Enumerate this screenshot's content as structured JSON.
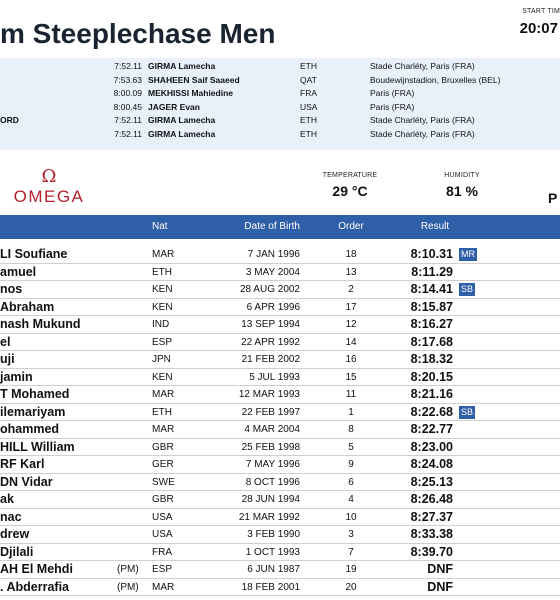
{
  "header": {
    "title": "m Steeplechase Men",
    "start_time_label": "START TIM",
    "start_time": "20:07"
  },
  "records": [
    {
      "category": "",
      "time": "7:52.11",
      "name": "GIRMA Lamecha",
      "nat": "ETH",
      "venue": "Stade Charléty, Paris (FRA)"
    },
    {
      "category": "",
      "time": "7:53.63",
      "name": "SHAHEEN Saif Saaeed",
      "nat": "QAT",
      "venue": "Boudewijnstadion, Bruxelles (BEL)"
    },
    {
      "category": "",
      "time": "8:00.09",
      "name": "MEKHISSI Mahiedine",
      "nat": "FRA",
      "venue": "Paris (FRA)"
    },
    {
      "category": "",
      "time": "8:00.45",
      "name": "JAGER Evan",
      "nat": "USA",
      "venue": "Paris (FRA)"
    },
    {
      "category": "ORD",
      "time": "7:52.11",
      "name": "GIRMA Lamecha",
      "nat": "ETH",
      "venue": "Stade Charléty, Paris (FRA)"
    },
    {
      "category": "",
      "time": "7:52.11",
      "name": "GIRMA Lamecha",
      "nat": "ETH",
      "venue": "Stade Charléty, Paris (FRA)"
    }
  ],
  "sponsor": {
    "symbol": "Ω",
    "word": "OMEGA",
    "color": "#b3212e"
  },
  "conditions": {
    "temperature_label": "TEMPERATURE",
    "temperature": "29 °C",
    "humidity_label": "HUMIDITY",
    "humidity": "81 %",
    "extra": "P"
  },
  "table": {
    "headers": {
      "nat": "Nat",
      "dob": "Date of Birth",
      "order": "Order",
      "result": "Result"
    },
    "rows": [
      {
        "name": "LI Soufiane",
        "pm": "",
        "nat": "MAR",
        "dob": "7 JAN 1996",
        "order": "18",
        "result": "8:10.31",
        "record": "MR"
      },
      {
        "name": "amuel",
        "pm": "",
        "nat": "ETH",
        "dob": "3 MAY 2004",
        "order": "13",
        "result": "8:11.29",
        "record": ""
      },
      {
        "name": "nos",
        "pm": "",
        "nat": "KEN",
        "dob": "28 AUG 2002",
        "order": "2",
        "result": "8:14.41",
        "record": "SB"
      },
      {
        "name": "Abraham",
        "pm": "",
        "nat": "KEN",
        "dob": "6 APR 1996",
        "order": "17",
        "result": "8:15.87",
        "record": ""
      },
      {
        "name": "nash Mukund",
        "pm": "",
        "nat": "IND",
        "dob": "13 SEP 1994",
        "order": "12",
        "result": "8:16.27",
        "record": ""
      },
      {
        "name": "el",
        "pm": "",
        "nat": "ESP",
        "dob": "22 APR 1992",
        "order": "14",
        "result": "8:17.68",
        "record": ""
      },
      {
        "name": "uji",
        "pm": "",
        "nat": "JPN",
        "dob": "21 FEB 2002",
        "order": "16",
        "result": "8:18.32",
        "record": ""
      },
      {
        "name": "jamin",
        "pm": "",
        "nat": "KEN",
        "dob": "5 JUL 1993",
        "order": "15",
        "result": "8:20.15",
        "record": ""
      },
      {
        "name": "T Mohamed",
        "pm": "",
        "nat": "MAR",
        "dob": "12 MAR 1993",
        "order": "11",
        "result": "8:21.16",
        "record": ""
      },
      {
        "name": "ilemariyam",
        "pm": "",
        "nat": "ETH",
        "dob": "22 FEB 1997",
        "order": "1",
        "result": "8:22.68",
        "record": "SB"
      },
      {
        "name": "ohammed",
        "pm": "",
        "nat": "MAR",
        "dob": "4 MAR 2004",
        "order": "8",
        "result": "8:22.77",
        "record": ""
      },
      {
        "name": "HILL William",
        "pm": "",
        "nat": "GBR",
        "dob": "25 FEB 1998",
        "order": "5",
        "result": "8:23.00",
        "record": ""
      },
      {
        "name": "RF Karl",
        "pm": "",
        "nat": "GER",
        "dob": "7 MAY 1996",
        "order": "9",
        "result": "8:24.08",
        "record": ""
      },
      {
        "name": "DN Vidar",
        "pm": "",
        "nat": "SWE",
        "dob": "8 OCT 1996",
        "order": "6",
        "result": "8:25.13",
        "record": ""
      },
      {
        "name": "ak",
        "pm": "",
        "nat": "GBR",
        "dob": "28 JUN 1994",
        "order": "4",
        "result": "8:26.48",
        "record": ""
      },
      {
        "name": "nac",
        "pm": "",
        "nat": "USA",
        "dob": "21 MAR 1992",
        "order": "10",
        "result": "8:27.37",
        "record": ""
      },
      {
        "name": "drew",
        "pm": "",
        "nat": "USA",
        "dob": "3 FEB 1990",
        "order": "3",
        "result": "8:33.38",
        "record": ""
      },
      {
        "name": "Djilali",
        "pm": "",
        "nat": "FRA",
        "dob": "1 OCT 1993",
        "order": "7",
        "result": "8:39.70",
        "record": ""
      },
      {
        "name": "AH El Mehdi",
        "pm": "(PM)",
        "nat": "ESP",
        "dob": "6 JUN 1987",
        "order": "19",
        "result": "DNF",
        "record": ""
      },
      {
        "name": ". Abderrafia",
        "pm": "(PM)",
        "nat": "MAR",
        "dob": "18 FEB 2001",
        "order": "20",
        "result": "DNF",
        "record": ""
      }
    ]
  },
  "colors": {
    "header_blue": "#2f5fa6",
    "records_band": "#e8f0fa",
    "omega_red": "#b3212e"
  }
}
